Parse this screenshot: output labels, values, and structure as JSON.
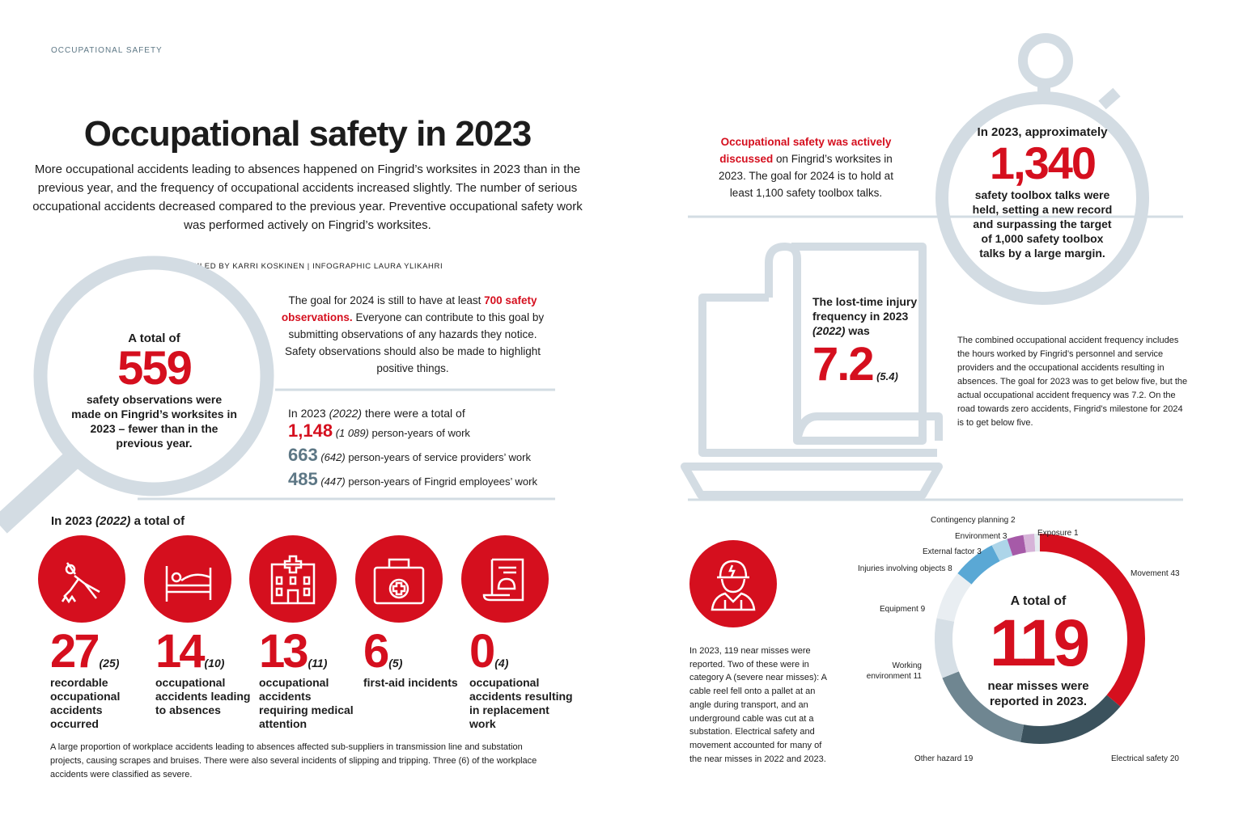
{
  "section_label": "OCCUPATIONAL SAFETY",
  "title": "Occupational safety in 2023",
  "intro": "More occupational accidents leading to absences happened on Fingrid’s worksites in 2023 than in the previous year, and the frequency of occupational accidents increased slightly. The number of serious occupational accidents decreased compared to the previous year. Preventive occupational safety work was performed actively on Fingrid’s worksites.",
  "credit": "COMPILED BY KARRI KOSKINEN | INFOGRAPHIC LAURA YLIKAHRI",
  "observations": {
    "pre": "A total of",
    "value": "559",
    "post": "safety observations were made on Fingrid’s worksites in 2023 – fewer than in the previous year."
  },
  "goal": {
    "pre": "The goal for 2024 is still to have at least ",
    "highlight": "700 safety observations.",
    "post": " Everyone can contribute to this goal by submitting observations of any hazards they notice. Safety observations should also be made to highlight positive things."
  },
  "person_years": {
    "heading_pre": "In 2023 ",
    "heading_prev": "(2022)",
    "heading_post": " there were a total of",
    "rows": [
      {
        "value": "1,148",
        "prev": "(1 089)",
        "label": "person-years of work"
      },
      {
        "value": "663",
        "prev": "(642)",
        "label": "person-years of service providers’ work"
      },
      {
        "value": "485",
        "prev": "(447)",
        "label": "person-years of Fingrid employees’ work"
      }
    ]
  },
  "totals_heading": {
    "pre": "In 2023 ",
    "prev": "(2022)",
    "post": " a total of"
  },
  "stats": [
    {
      "icon": "falling-person-icon",
      "value": "27",
      "prev": "(25)",
      "label": "recordable occupational accidents occurred"
    },
    {
      "icon": "bed-icon",
      "value": "14",
      "prev": "(10)",
      "label": "occupational accidents leading to absences"
    },
    {
      "icon": "hospital-icon",
      "value": "13",
      "prev": "(11)",
      "label": "occupational accidents requiring medical attention"
    },
    {
      "icon": "first-aid-kit-icon",
      "value": "6",
      "prev": "(5)",
      "label": "first-aid incidents"
    },
    {
      "icon": "document-helmet-icon",
      "value": "0",
      "prev": "(4)",
      "label": "occupational accidents resulting in replacement work"
    }
  ],
  "stats_note": "A large proportion of workplace accidents leading to absences affected sub-suppliers in transmission line and substation projects, causing scrapes and bruises. There were also several incidents of slipping and tripping. Three (6) of the workplace accidents were classified as severe.",
  "toolbox": {
    "highlight": "Occupational safety was actively discussed",
    "post": " on Fingrid’s worksites in 2023. The goal for 2024 is to hold at least 1,100 safety toolbox talks.",
    "pre_big": "In 2023, approximately",
    "value": "1,340",
    "post_big": "safety toolbox talks were held, setting a new record and surpassing the target of 1,000 safety toolbox talks by a large margin."
  },
  "ltif": {
    "pre": "The lost-time injury frequency in 2023 ",
    "prev_year": "(2022)",
    "post": " was",
    "value": "7.2",
    "prev": "(5.4)"
  },
  "combined_note": "The combined occupational accident frequency includes the hours worked by Fingrid’s personnel and service providers and the occupational accidents resulting in absences. The goal for 2023 was to get below five, but the actual occupational accident frequency was 7.2. On the road towards zero accidents, Fingrid’s milestone for 2024 is to get below five.",
  "near_miss_note": "In 2023, 119 near misses were reported. Two of these were in category A (severe near misses): A cable reel fell onto a pallet at an angle during transport, and an underground cable was cut at a substation. Electrical safety and movement accounted for many of the near misses in 2022 and 2023.",
  "colors": {
    "red": "#d50f1e",
    "outline": "#d3dce3"
  },
  "chart_data": {
    "type": "pie",
    "donut": true,
    "center_pre": "A total of",
    "center_value": "119",
    "center_post": "near misses were reported in 2023.",
    "categories": [
      "Movement",
      "Electrical safety",
      "Other hazard",
      "Working environment",
      "Equipment",
      "Injuries involving objects",
      "External factor",
      "Environment",
      "Contingency planning",
      "Exposure"
    ],
    "values": [
      43,
      20,
      19,
      11,
      9,
      8,
      3,
      3,
      2,
      1
    ],
    "colors": [
      "#d50f1e",
      "#3b525d",
      "#6f8691",
      "#d6dfe6",
      "#e9eef2",
      "#5aa8d5",
      "#add5e9",
      "#a65aa8",
      "#d6b3d8",
      "#e4ebef"
    ]
  }
}
